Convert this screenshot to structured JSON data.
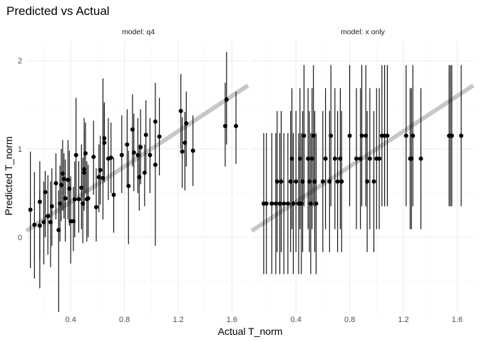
{
  "chart_data": {
    "type": "scatter",
    "title": "Predicted vs Actual",
    "xlabel": "Actual T_norm",
    "ylabel": "Predicted T_norm",
    "xlim": [
      0.07,
      1.72
    ],
    "ylim": [
      -0.85,
      2.22
    ],
    "x_ticks": [
      0.4,
      0.8,
      1.2,
      1.6
    ],
    "y_ticks": [
      0,
      1,
      2
    ],
    "grid": true,
    "reference_line": {
      "slope": 1,
      "intercept": 0,
      "color": "#bdbdbd"
    },
    "colors": {
      "points": "#000000",
      "reference": "#bdbdbd",
      "grid_major": "#ebebeb",
      "grid_minor": "#f5f5f5"
    },
    "panels": [
      {
        "label": "model: q4",
        "points": [
          {
            "x": 0.1,
            "y": 0.31,
            "lo": -0.35,
            "hi": 0.97
          },
          {
            "x": 0.13,
            "y": 0.14,
            "lo": -0.47,
            "hi": 0.74
          },
          {
            "x": 0.17,
            "y": 0.4,
            "lo": -0.58,
            "hi": 0.86
          },
          {
            "x": 0.17,
            "y": 0.13,
            "lo": -0.25,
            "hi": 0.53
          },
          {
            "x": 0.2,
            "y": 0.17,
            "lo": -0.31,
            "hi": 0.63
          },
          {
            "x": 0.21,
            "y": 0.51,
            "lo": 0.0,
            "hi": 0.75
          },
          {
            "x": 0.23,
            "y": 0.24,
            "lo": -0.2,
            "hi": 0.7
          },
          {
            "x": 0.25,
            "y": 0.17,
            "lo": -0.34,
            "hi": 0.63
          },
          {
            "x": 0.26,
            "y": 0.35,
            "lo": -0.1,
            "hi": 0.78
          },
          {
            "x": 0.29,
            "y": 0.61,
            "lo": 0.2,
            "hi": 0.95
          },
          {
            "x": 0.31,
            "y": 0.08,
            "lo": -0.85,
            "hi": 0.53
          },
          {
            "x": 0.32,
            "y": 0.38,
            "lo": -0.05,
            "hi": 0.81
          },
          {
            "x": 0.33,
            "y": 0.59,
            "lo": 0.18,
            "hi": 1.0
          },
          {
            "x": 0.34,
            "y": 0.72,
            "lo": 0.3,
            "hi": 1.1
          },
          {
            "x": 0.35,
            "y": 0.66,
            "lo": 0.21,
            "hi": 0.95
          },
          {
            "x": 0.36,
            "y": 0.44,
            "lo": -0.05,
            "hi": 0.88
          },
          {
            "x": 0.38,
            "y": 0.65,
            "lo": 0.2,
            "hi": 1.1
          },
          {
            "x": 0.39,
            "y": 0.55,
            "lo": 0.13,
            "hi": 0.98
          },
          {
            "x": 0.4,
            "y": 0.18,
            "lo": -0.3,
            "hi": 0.69
          },
          {
            "x": 0.42,
            "y": 0.18,
            "lo": -0.16,
            "hi": 0.57
          },
          {
            "x": 0.43,
            "y": 0.43,
            "lo": 0.0,
            "hi": 0.86
          },
          {
            "x": 0.44,
            "y": 0.93,
            "lo": 0.46,
            "hi": 1.58
          },
          {
            "x": 0.46,
            "y": 0.43,
            "lo": 0.05,
            "hi": 0.86
          },
          {
            "x": 0.48,
            "y": 0.56,
            "lo": 0.09,
            "hi": 1.05
          },
          {
            "x": 0.49,
            "y": 0.38,
            "lo": -0.07,
            "hi": 0.9
          },
          {
            "x": 0.5,
            "y": 0.73,
            "lo": 0.35,
            "hi": 1.35
          },
          {
            "x": 0.5,
            "y": 0.77,
            "lo": 0.3,
            "hi": 1.2
          },
          {
            "x": 0.51,
            "y": 0.95,
            "lo": 0.5,
            "hi": 1.3
          },
          {
            "x": 0.52,
            "y": 0.43,
            "lo": -0.05,
            "hi": 0.86
          },
          {
            "x": 0.53,
            "y": 0.44,
            "lo": 0.0,
            "hi": 0.82
          },
          {
            "x": 0.57,
            "y": 0.91,
            "lo": 0.48,
            "hi": 1.32
          },
          {
            "x": 0.59,
            "y": 0.34,
            "lo": -0.05,
            "hi": 0.78
          },
          {
            "x": 0.61,
            "y": 0.68,
            "lo": 0.28,
            "hi": 1.05
          },
          {
            "x": 0.62,
            "y": 0.76,
            "lo": 0.37,
            "hi": 1.15
          },
          {
            "x": 0.64,
            "y": 0.67,
            "lo": 0.2,
            "hi": 1.8
          },
          {
            "x": 0.65,
            "y": 1.07,
            "lo": 0.62,
            "hi": 1.5
          },
          {
            "x": 0.65,
            "y": 1.12,
            "lo": 0.7,
            "hi": 1.53
          },
          {
            "x": 0.68,
            "y": 0.89,
            "lo": 0.42,
            "hi": 1.35
          },
          {
            "x": 0.7,
            "y": 0.9,
            "lo": 0.5,
            "hi": 1.3
          },
          {
            "x": 0.72,
            "y": 0.48,
            "lo": 0.05,
            "hi": 0.9
          },
          {
            "x": 0.78,
            "y": 0.93,
            "lo": 0.5,
            "hi": 1.38
          },
          {
            "x": 0.82,
            "y": 1.05,
            "lo": 0.6,
            "hi": 1.45
          },
          {
            "x": 0.83,
            "y": 0.58,
            "lo": -0.08,
            "hi": 0.98
          },
          {
            "x": 0.86,
            "y": 1.22,
            "lo": 0.8,
            "hi": 1.62
          },
          {
            "x": 0.87,
            "y": 0.96,
            "lo": 0.52,
            "hi": 1.4
          },
          {
            "x": 0.9,
            "y": 0.93,
            "lo": 0.5,
            "hi": 1.35
          },
          {
            "x": 0.91,
            "y": 0.68,
            "lo": 0.3,
            "hi": 1.05
          },
          {
            "x": 0.92,
            "y": 1.02,
            "lo": 0.6,
            "hi": 1.45
          },
          {
            "x": 0.95,
            "y": 0.73,
            "lo": 0.35,
            "hi": 1.05
          },
          {
            "x": 0.96,
            "y": 1.16,
            "lo": 0.75,
            "hi": 1.55
          },
          {
            "x": 0.99,
            "y": 0.93,
            "lo": 0.5,
            "hi": 1.35
          },
          {
            "x": 1.03,
            "y": 0.82,
            "lo": -0.1,
            "hi": 1.22
          },
          {
            "x": 1.03,
            "y": 1.31,
            "lo": 0.88,
            "hi": 1.75
          },
          {
            "x": 1.06,
            "y": 1.14,
            "lo": 0.7,
            "hi": 1.58
          },
          {
            "x": 1.22,
            "y": 1.43,
            "lo": 1.0,
            "hi": 1.85
          },
          {
            "x": 1.23,
            "y": 0.97,
            "lo": 0.56,
            "hi": 1.36
          },
          {
            "x": 1.25,
            "y": 1.07,
            "lo": 0.53,
            "hi": 1.42
          },
          {
            "x": 1.26,
            "y": 1.29,
            "lo": 0.8,
            "hi": 1.65
          },
          {
            "x": 1.31,
            "y": 0.98,
            "lo": 0.58,
            "hi": 1.38
          },
          {
            "x": 1.55,
            "y": 1.26,
            "lo": 0.8,
            "hi": 1.75
          },
          {
            "x": 1.56,
            "y": 1.56,
            "lo": 1.05,
            "hi": 2.1
          },
          {
            "x": 1.63,
            "y": 1.26,
            "lo": 0.83,
            "hi": 1.65
          }
        ]
      },
      {
        "label": "model: x only",
        "points": [
          {
            "x": 0.16,
            "y": 0.38,
            "lo": -0.42,
            "hi": 1.18
          },
          {
            "x": 0.18,
            "y": 0.38,
            "lo": -0.42,
            "hi": 1.18
          },
          {
            "x": 0.22,
            "y": 0.38,
            "lo": -0.42,
            "hi": 1.18
          },
          {
            "x": 0.25,
            "y": 0.38,
            "lo": -0.42,
            "hi": 1.18
          },
          {
            "x": 0.26,
            "y": 0.63,
            "lo": -0.17,
            "hi": 1.43
          },
          {
            "x": 0.28,
            "y": 0.38,
            "lo": -0.42,
            "hi": 1.18
          },
          {
            "x": 0.29,
            "y": 0.63,
            "lo": -0.17,
            "hi": 1.43
          },
          {
            "x": 0.31,
            "y": 0.38,
            "lo": -0.42,
            "hi": 1.18
          },
          {
            "x": 0.34,
            "y": 0.38,
            "lo": -0.42,
            "hi": 1.18
          },
          {
            "x": 0.36,
            "y": 0.63,
            "lo": -0.17,
            "hi": 1.43
          },
          {
            "x": 0.37,
            "y": 0.89,
            "lo": 0.09,
            "hi": 1.69
          },
          {
            "x": 0.38,
            "y": 0.38,
            "lo": -0.42,
            "hi": 1.18
          },
          {
            "x": 0.4,
            "y": 0.63,
            "lo": -0.17,
            "hi": 1.43
          },
          {
            "x": 0.42,
            "y": 0.38,
            "lo": -0.42,
            "hi": 1.18
          },
          {
            "x": 0.43,
            "y": 0.89,
            "lo": 0.09,
            "hi": 1.69
          },
          {
            "x": 0.44,
            "y": 0.38,
            "lo": -0.42,
            "hi": 1.18
          },
          {
            "x": 0.45,
            "y": 0.63,
            "lo": -0.17,
            "hi": 1.43
          },
          {
            "x": 0.46,
            "y": 1.15,
            "lo": 0.35,
            "hi": 1.95
          },
          {
            "x": 0.49,
            "y": 0.89,
            "lo": 0.09,
            "hi": 1.69
          },
          {
            "x": 0.5,
            "y": 0.63,
            "lo": -0.17,
            "hi": 1.43
          },
          {
            "x": 0.51,
            "y": 0.38,
            "lo": -0.42,
            "hi": 1.18
          },
          {
            "x": 0.52,
            "y": 0.89,
            "lo": 0.09,
            "hi": 1.69
          },
          {
            "x": 0.53,
            "y": 1.15,
            "lo": 0.35,
            "hi": 1.95
          },
          {
            "x": 0.54,
            "y": 0.63,
            "lo": -0.17,
            "hi": 1.43
          },
          {
            "x": 0.55,
            "y": 0.38,
            "lo": -0.42,
            "hi": 1.18
          },
          {
            "x": 0.6,
            "y": 0.63,
            "lo": -0.17,
            "hi": 1.43
          },
          {
            "x": 0.62,
            "y": 0.89,
            "lo": 0.09,
            "hi": 1.69
          },
          {
            "x": 0.65,
            "y": 0.63,
            "lo": -0.17,
            "hi": 1.43
          },
          {
            "x": 0.66,
            "y": 1.15,
            "lo": 0.35,
            "hi": 1.95
          },
          {
            "x": 0.69,
            "y": 0.89,
            "lo": 0.09,
            "hi": 1.69
          },
          {
            "x": 0.71,
            "y": 0.63,
            "lo": -0.17,
            "hi": 1.43
          },
          {
            "x": 0.73,
            "y": 0.89,
            "lo": 0.09,
            "hi": 1.69
          },
          {
            "x": 0.74,
            "y": 0.63,
            "lo": -0.17,
            "hi": 1.43
          },
          {
            "x": 0.8,
            "y": 1.15,
            "lo": 0.35,
            "hi": 1.95
          },
          {
            "x": 0.85,
            "y": 0.89,
            "lo": 0.09,
            "hi": 1.69
          },
          {
            "x": 0.88,
            "y": 0.89,
            "lo": 0.09,
            "hi": 1.69
          },
          {
            "x": 0.89,
            "y": 1.15,
            "lo": 0.35,
            "hi": 1.95
          },
          {
            "x": 0.92,
            "y": 1.15,
            "lo": 0.35,
            "hi": 1.95
          },
          {
            "x": 0.93,
            "y": 0.63,
            "lo": -0.17,
            "hi": 1.43
          },
          {
            "x": 0.95,
            "y": 0.89,
            "lo": 0.09,
            "hi": 1.69
          },
          {
            "x": 0.98,
            "y": 0.63,
            "lo": -0.17,
            "hi": 1.43
          },
          {
            "x": 1.0,
            "y": 0.89,
            "lo": 0.09,
            "hi": 1.69
          },
          {
            "x": 1.02,
            "y": 0.89,
            "lo": 0.09,
            "hi": 1.69
          },
          {
            "x": 1.04,
            "y": 1.15,
            "lo": 0.35,
            "hi": 1.95
          },
          {
            "x": 1.06,
            "y": 1.15,
            "lo": 0.35,
            "hi": 1.95
          },
          {
            "x": 1.08,
            "y": 1.15,
            "lo": 0.35,
            "hi": 1.95
          },
          {
            "x": 1.22,
            "y": 1.15,
            "lo": 0.35,
            "hi": 1.95
          },
          {
            "x": 1.25,
            "y": 0.89,
            "lo": 0.09,
            "hi": 1.69
          },
          {
            "x": 1.26,
            "y": 0.89,
            "lo": 0.09,
            "hi": 1.69
          },
          {
            "x": 1.27,
            "y": 1.15,
            "lo": 0.35,
            "hi": 1.95
          },
          {
            "x": 1.33,
            "y": 0.89,
            "lo": 0.09,
            "hi": 1.69
          },
          {
            "x": 1.54,
            "y": 1.15,
            "lo": 0.35,
            "hi": 1.95
          },
          {
            "x": 1.55,
            "y": 1.15,
            "lo": 0.35,
            "hi": 1.95
          },
          {
            "x": 1.56,
            "y": 1.15,
            "lo": 0.35,
            "hi": 1.95
          },
          {
            "x": 1.63,
            "y": 1.15,
            "lo": 0.35,
            "hi": 1.95
          }
        ]
      }
    ]
  }
}
